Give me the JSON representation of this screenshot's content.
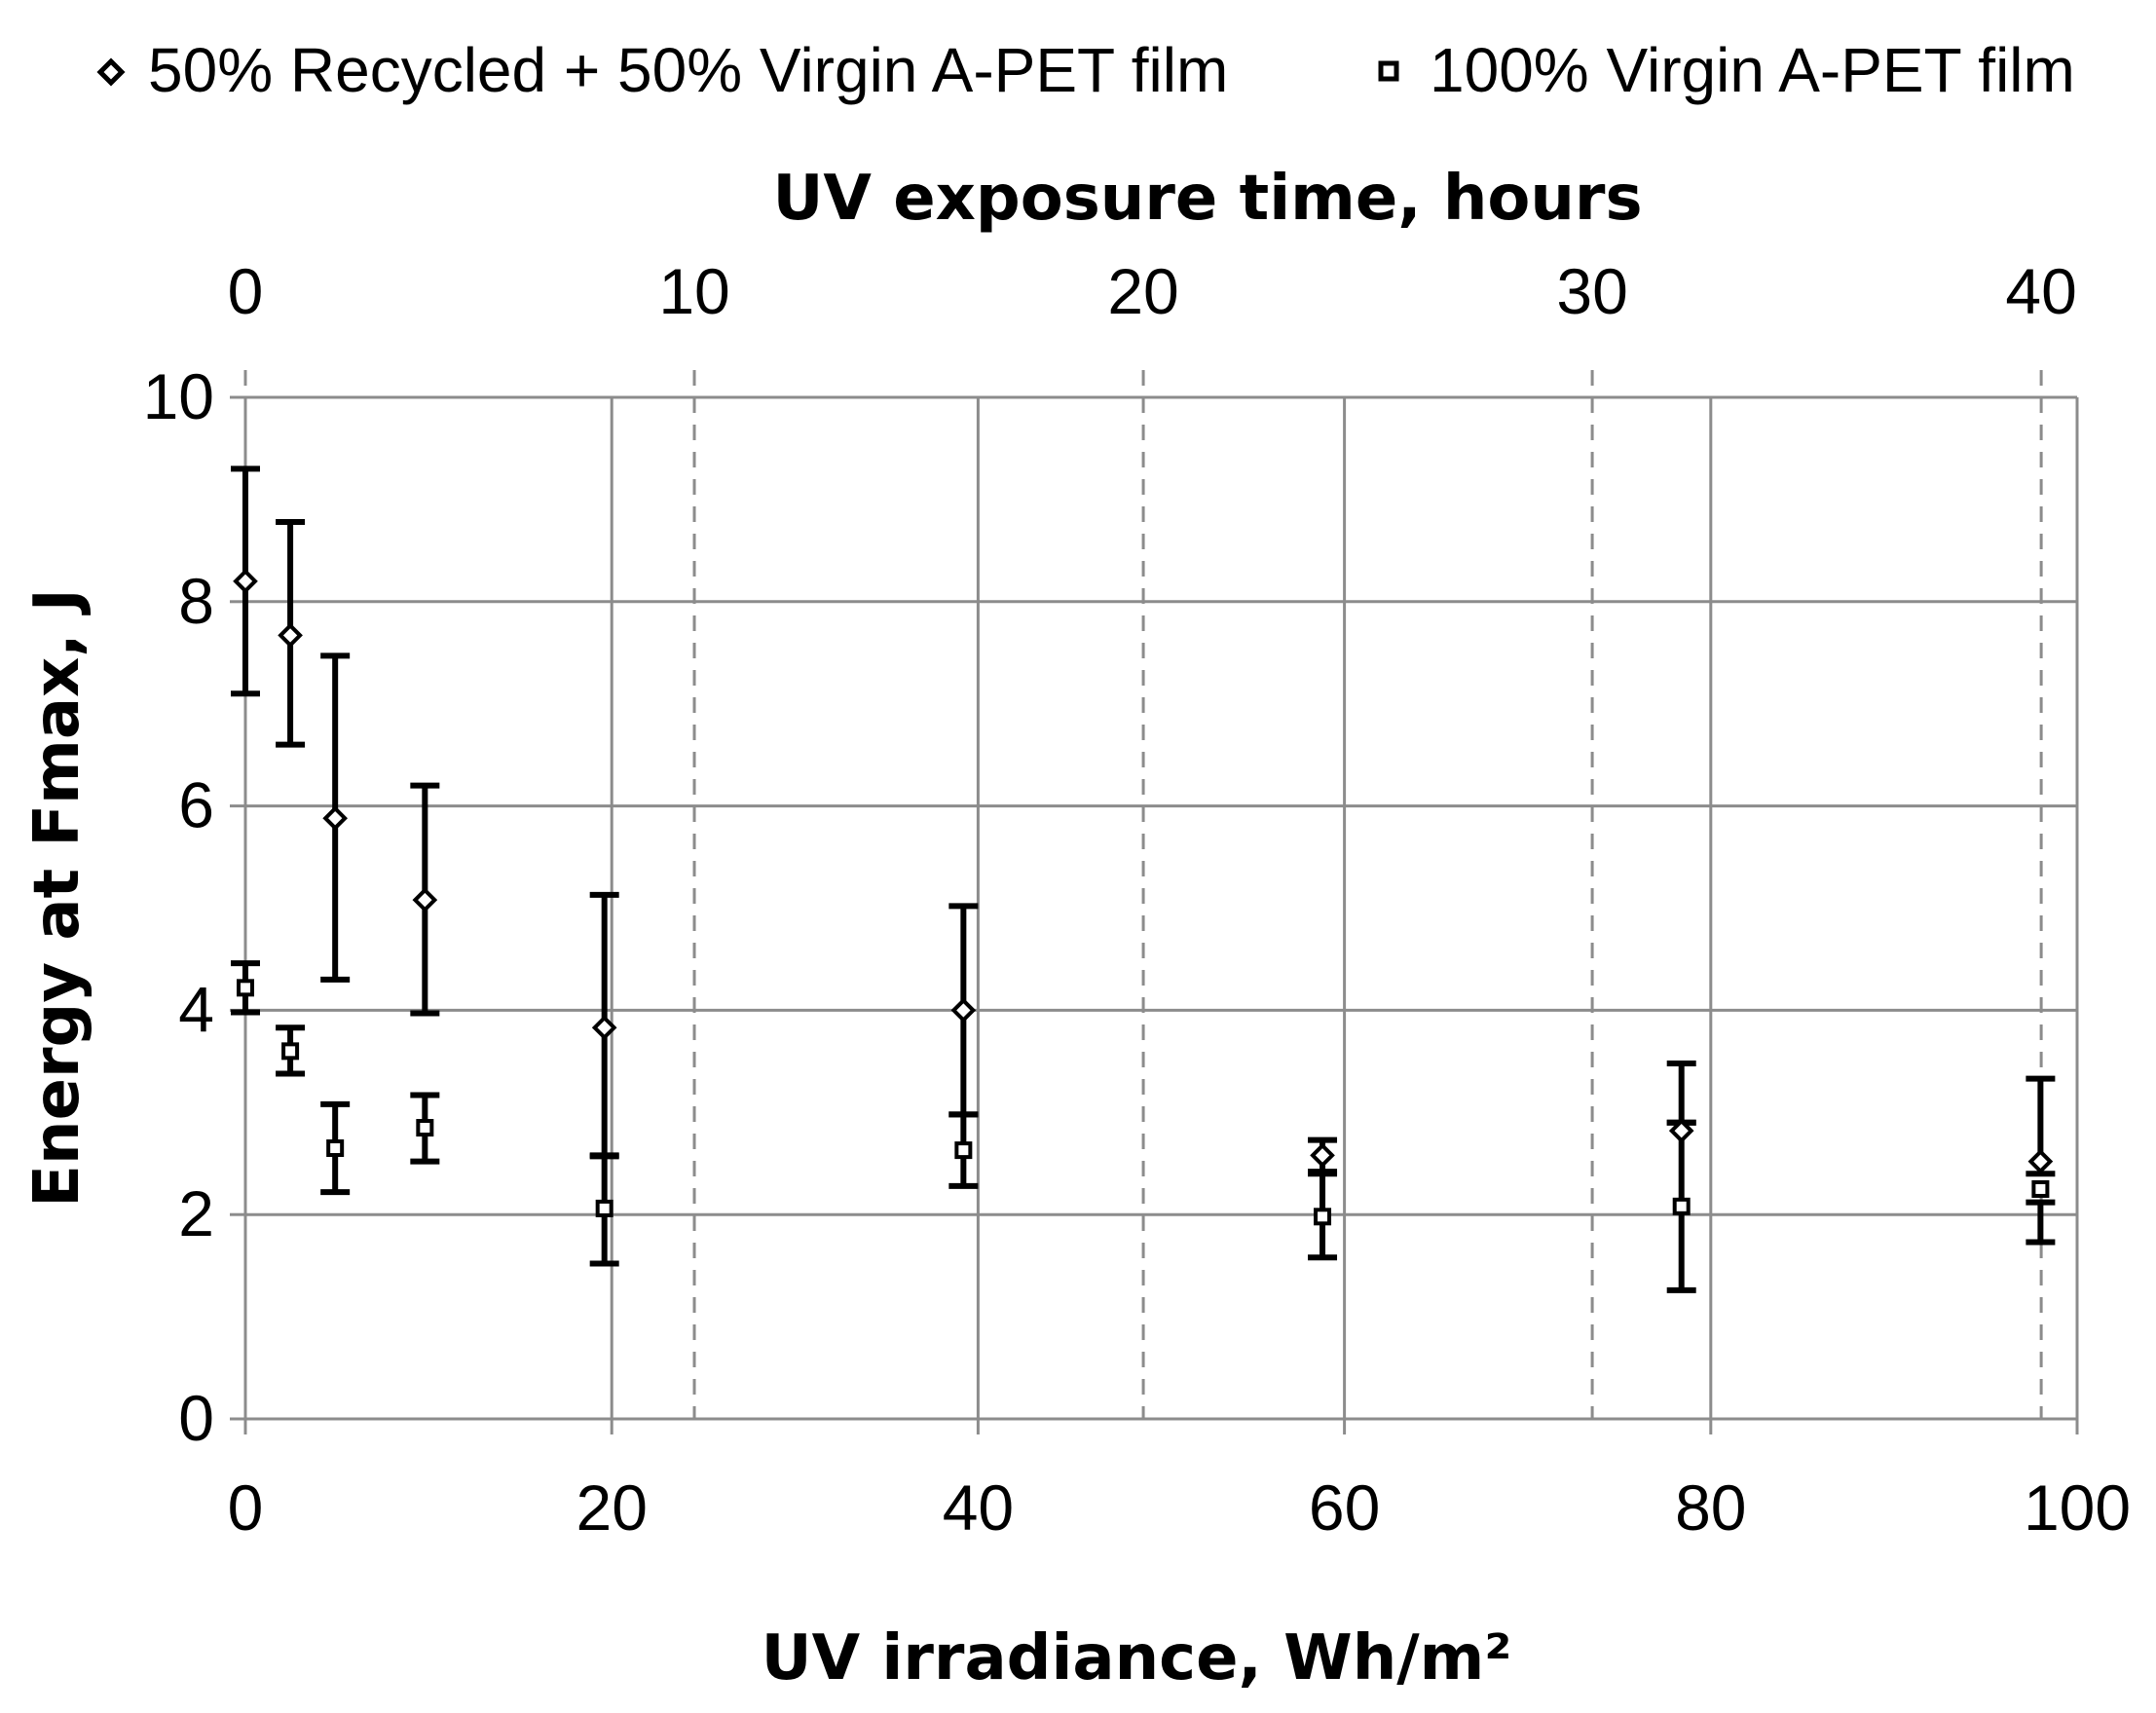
{
  "chart_data": {
    "type": "scatter",
    "title": "",
    "xlabel": "UV irradiance, Wh/m²",
    "xlabel_top": "UV exposure time, hours",
    "ylabel": "Energy at Fmax, J",
    "xlim": [
      0,
      100
    ],
    "ylim": [
      0,
      10
    ],
    "x2lim": [
      0,
      40.8
    ],
    "x_ticks": [
      "0",
      "20",
      "40",
      "60",
      "80",
      "100"
    ],
    "x_ticks_top": [
      "0",
      "10",
      "20",
      "30",
      "40"
    ],
    "y_ticks": [
      "0",
      "2",
      "4",
      "6",
      "8",
      "10"
    ],
    "grid": true,
    "legend_position": "top",
    "series": [
      {
        "name": "50% Recycled + 50% Virgin A-PET film",
        "marker": "diamond",
        "points": [
          {
            "x": 0,
            "y": 8.2,
            "err_low": 7.1,
            "err_high": 9.3
          },
          {
            "x": 2.45,
            "y": 7.67,
            "err_low": 6.6,
            "err_high": 8.78
          },
          {
            "x": 4.9,
            "y": 5.88,
            "err_low": 4.3,
            "err_high": 7.47
          },
          {
            "x": 9.8,
            "y": 5.08,
            "err_low": 3.97,
            "err_high": 6.2
          },
          {
            "x": 19.6,
            "y": 3.83,
            "err_low": 2.57,
            "err_high": 5.13
          },
          {
            "x": 39.2,
            "y": 4.0,
            "err_low": 2.98,
            "err_high": 5.02
          },
          {
            "x": 58.8,
            "y": 2.58,
            "err_low": 2.42,
            "err_high": 2.73
          },
          {
            "x": 78.4,
            "y": 2.82,
            "err_low": 2.9,
            "err_high": 3.48
          },
          {
            "x": 98.0,
            "y": 2.52,
            "err_low": 2.4,
            "err_high": 3.33
          }
        ]
      },
      {
        "name": "100% Virgin A-PET film",
        "marker": "square",
        "points": [
          {
            "x": 0,
            "y": 4.22,
            "err_low": 3.98,
            "err_high": 4.46
          },
          {
            "x": 2.45,
            "y": 3.6,
            "err_low": 3.38,
            "err_high": 3.83
          },
          {
            "x": 4.9,
            "y": 2.65,
            "err_low": 2.22,
            "err_high": 3.08
          },
          {
            "x": 9.8,
            "y": 2.85,
            "err_low": 2.52,
            "err_high": 3.17
          },
          {
            "x": 19.6,
            "y": 2.06,
            "err_low": 1.52,
            "err_high": 2.58
          },
          {
            "x": 39.2,
            "y": 2.63,
            "err_low": 2.28,
            "err_high": 2.98
          },
          {
            "x": 58.8,
            "y": 1.98,
            "err_low": 1.58,
            "err_high": 2.4
          },
          {
            "x": 78.4,
            "y": 2.08,
            "err_low": 1.26,
            "err_high": 2.9
          },
          {
            "x": 98.0,
            "y": 2.25,
            "err_low": 1.73,
            "err_high": 2.12
          }
        ]
      }
    ]
  },
  "icons": {
    "series_0_marker": "diamond-marker-icon",
    "series_1_marker": "square-marker-icon"
  },
  "colors": {
    "grid": "#8c8c8c",
    "error_bar": "#000000",
    "marker_fill": "#ffffff",
    "marker_stroke": "#000000"
  }
}
